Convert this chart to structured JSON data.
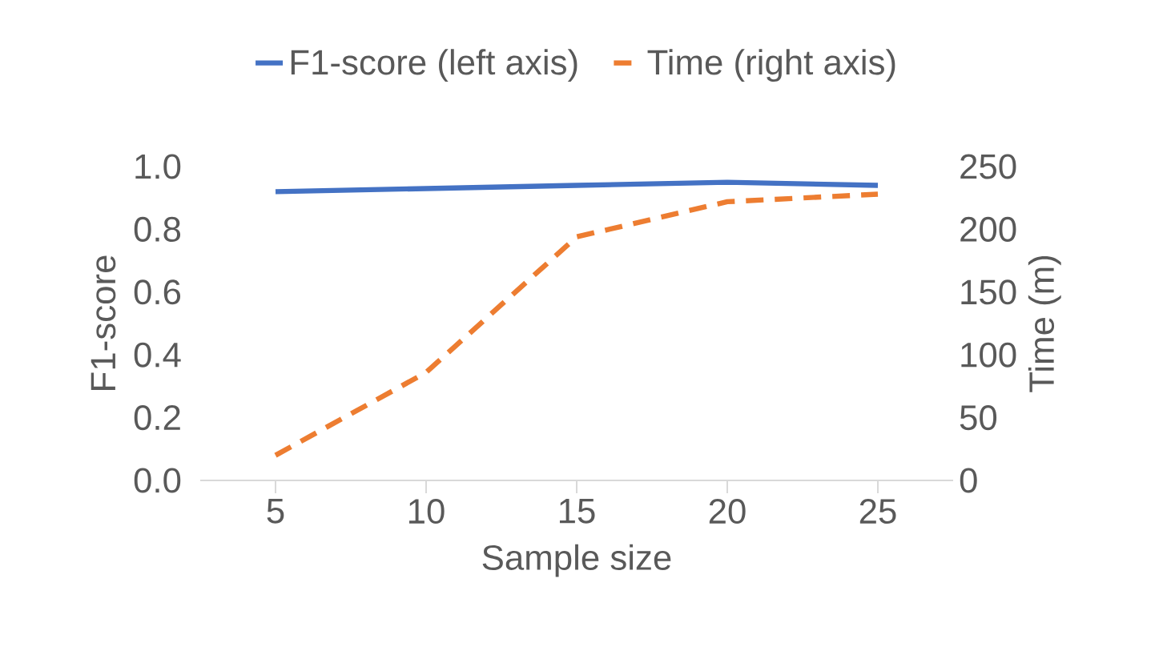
{
  "chart_data": {
    "type": "line",
    "xlabel": "Sample size",
    "ylabel": "F1-score",
    "y2label": "Time (m)",
    "categories": [
      "5",
      "10",
      "15",
      "20",
      "25"
    ],
    "series": [
      {
        "name": "F1-score (left axis)",
        "color": "#4472c4",
        "line_style": "solid",
        "values": [
          0.92,
          0.93,
          0.94,
          0.95,
          0.94
        ]
      },
      {
        "name": "Time (right axis)",
        "color": "#ed7d31",
        "line_style": "dashed",
        "axis": "y2",
        "values": [
          20,
          86,
          194,
          222,
          228
        ]
      }
    ],
    "ylim": [
      0,
      1
    ],
    "yticks": [
      {
        "value": 0,
        "label": "0.0"
      },
      {
        "value": 0.2,
        "label": "0.2"
      },
      {
        "value": 0.4,
        "label": "0.4"
      },
      {
        "value": 0.6,
        "label": "0.6"
      },
      {
        "value": 0.8,
        "label": "0.8"
      },
      {
        "value": 1,
        "label": "1.0"
      }
    ],
    "y2lim": [
      0,
      250
    ],
    "y2ticks": [
      0,
      50,
      100,
      150,
      200,
      250
    ],
    "legend": "top"
  }
}
